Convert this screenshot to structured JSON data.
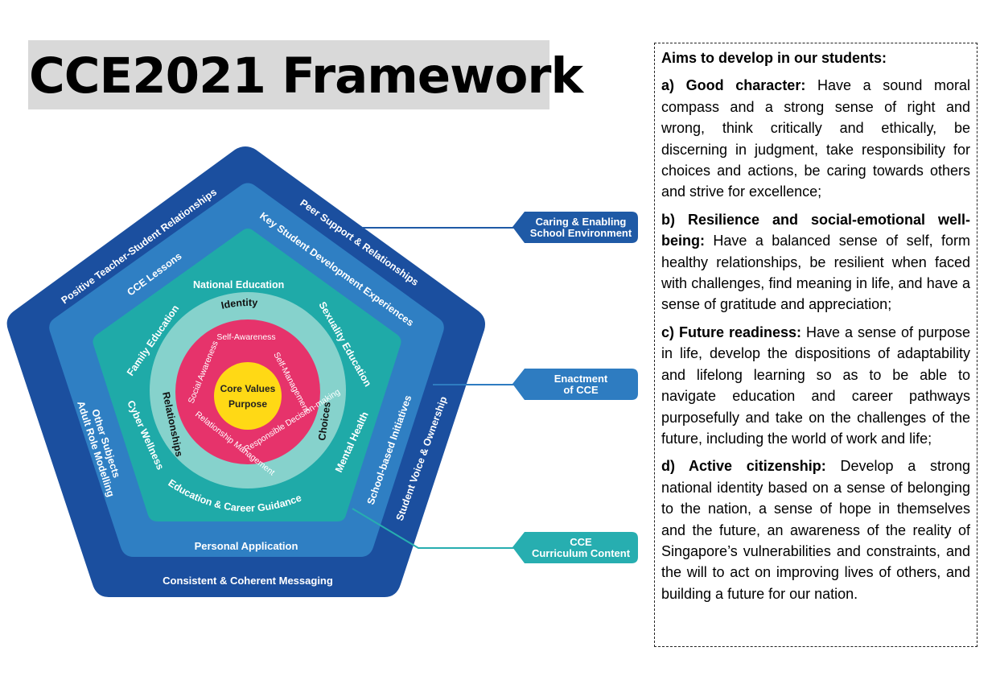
{
  "title": "CCE2021 Framework",
  "diagram": {
    "core_line1": "Core Values",
    "core_line2": "Purpose",
    "sel": {
      "self_awareness": "Self-Awareness",
      "self_management": "Self-Management",
      "social_awareness": "Social Awareness",
      "relationship_management": "Relationship Management",
      "responsible_decision_making": "Responsible Decision-making"
    },
    "identity": "Identity",
    "relationships": "Relationships",
    "choices": "Choices",
    "content": {
      "national_education": "National Education",
      "sexuality_education": "Sexuality Education",
      "mental_health": "Mental Health",
      "education_career_guidance": "Education & Career Guidance",
      "cyber_wellness": "Cyber Wellness",
      "family_education": "Family Education"
    },
    "enactment": {
      "cce_lessons": "CCE Lessons",
      "key_student_development": "Key Student Development Experiences",
      "school_based_initiatives": "School-based Initiatives",
      "personal_application": "Personal Application",
      "other_subjects": "Other Subjects"
    },
    "environment": {
      "positive_teacher_student": "Positive Teacher-Student Relationships",
      "peer_support": "Peer Support & Relationships",
      "student_voice": "Student Voice & Ownership",
      "consistent_messaging": "Consistent & Coherent Messaging",
      "adult_role_modelling": "Adult Role Modelling"
    },
    "callouts": {
      "environment_line1": "Caring & Enabling",
      "environment_line2": "School Environment",
      "enactment_line1": "Enactment",
      "enactment_line2": "of CCE",
      "content_line1": "CCE",
      "content_line2": "Curriculum Content"
    },
    "colors": {
      "outer": "#1b4f9f",
      "middle": "#2f7fc3",
      "inner": "#1faaa8",
      "ring": "#86d2cc",
      "sel_ring": "#e6336b",
      "core": "#ffd915",
      "callout_environment": "#1f5aa6",
      "callout_enactment": "#2e7cc1",
      "callout_content": "#27aeb0"
    }
  },
  "aims": {
    "heading": "Aims to develop in our students:",
    "items": [
      {
        "label": "a) Good character:",
        "text": "Have a sound moral compass and a strong sense of right and wrong, think critically and ethically, be discerning in judgment, take responsibility for choices and actions, be caring towards others and strive for excellence;"
      },
      {
        "label": "b) Resilience and social-emotional well-being:",
        "text": "Have a balanced sense of self, form healthy relationships, be resilient when faced with challenges, find meaning in life, and have a sense of gratitude and appreciation;"
      },
      {
        "label": "c) Future readiness:",
        "text": "Have a sense of purpose in life, develop the dispositions of adaptability and lifelong learning so as to be able to navigate education and career pathways purposefully and take on the challenges of the future, including the world of work and life;"
      },
      {
        "label": "d) Active citizenship:",
        "text": "Develop a strong national identity based on a sense of belonging to the nation, a sense of hope in themselves and the future, an awareness of the reality of Singapore’s vulnerabilities and constraints, and the will to act on improving lives of others, and building a future for our nation."
      }
    ]
  }
}
